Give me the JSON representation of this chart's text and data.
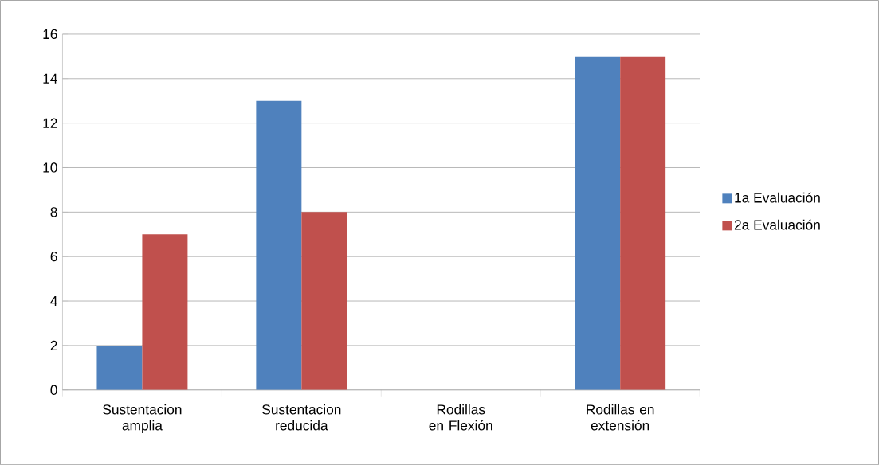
{
  "chart_data": {
    "type": "bar",
    "categories": [
      "Sustentacion amplia",
      "Sustentacion reducida",
      "Rodillas en Flexión",
      "Rodillas en extensión"
    ],
    "series": [
      {
        "name": "1a Evaluación",
        "color": "#4f81bd",
        "values": [
          2,
          13,
          0,
          15
        ]
      },
      {
        "name": "2a Evaluación",
        "color": "#c0504d",
        "values": [
          7,
          8,
          0,
          15
        ]
      }
    ],
    "ylim": [
      0,
      16
    ],
    "yticks": [
      0,
      2,
      4,
      6,
      8,
      10,
      12,
      14,
      16
    ],
    "grid": "y",
    "legend": "right"
  }
}
